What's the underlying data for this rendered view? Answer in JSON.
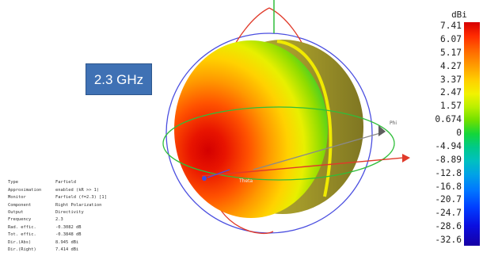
{
  "frequency_label": "2.3 GHz",
  "axis_labels": {
    "phi": "Phi",
    "theta": "Theta"
  },
  "info_table": [
    {
      "key": "Type",
      "value": "Farfield"
    },
    {
      "key": "Approximation",
      "value": "enabled (kR >> 1)"
    },
    {
      "key": "Monitor",
      "value": "Farfield (f=2.3) [1]"
    },
    {
      "key": "Component",
      "value": "Right Polarization"
    },
    {
      "key": "Output",
      "value": "Directivity"
    },
    {
      "key": "Frequency",
      "value": "2.3"
    },
    {
      "key": "Rad. effic.",
      "value": "-0.3082 dB"
    },
    {
      "key": "Tot. effic.",
      "value": "-0.3848 dB"
    },
    {
      "key": "Dir.(Abs)",
      "value": "8.945 dBi"
    },
    {
      "key": "Dir.(Right)",
      "value": "7.414 dBi"
    }
  ],
  "colorbar": {
    "unit": "dBi",
    "ticks": [
      "7.41",
      "6.07",
      "5.17",
      "4.27",
      "3.37",
      "2.47",
      "1.57",
      "0.674",
      "0",
      "-4.94",
      "-8.89",
      "-12.8",
      "-16.8",
      "-20.7",
      "-24.7",
      "-28.6",
      "-32.6"
    ]
  },
  "colors": {
    "label_box": "#3f71b4",
    "axis_red": "#e03a2a",
    "orbit_blue": "#4b4fe0",
    "orbit_green": "#2fbe3a",
    "vertical_axis": "#2fbe3a"
  }
}
